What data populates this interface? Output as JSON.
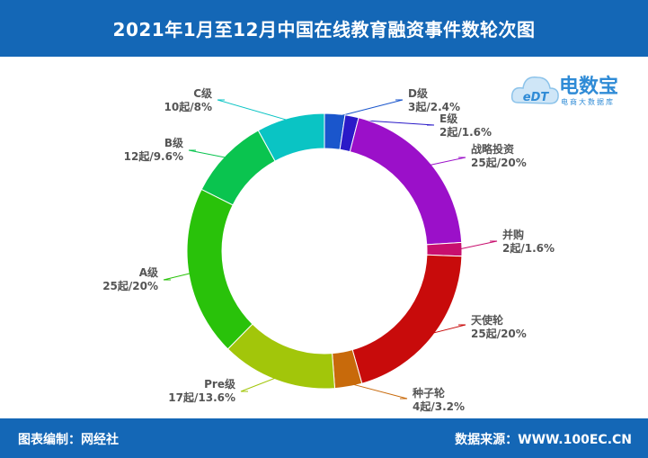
{
  "header": {
    "title": "2021年1月至12月中国在线教育融资事件数轮次图"
  },
  "footer": {
    "left": "图表编制：网经社",
    "right": "数据来源：WWW.100EC.CN"
  },
  "logo": {
    "mark": "eDT",
    "brand": "电数宝",
    "sub": "电商大数据库"
  },
  "chart_data": {
    "type": "pie",
    "title": "2021年1月至12月中国在线教育融资事件数轮次图",
    "unit": "起",
    "slices": [
      {
        "name": "D级",
        "value": 3,
        "percent": "2.4%",
        "label": "3起/2.4%",
        "color": "#1a56cc"
      },
      {
        "name": "E级",
        "value": 2,
        "percent": "1.6%",
        "label": "2起/1.6%",
        "color": "#2a1ac8"
      },
      {
        "name": "战略投资",
        "value": 25,
        "percent": "20%",
        "label": "25起/20%",
        "color": "#9b10c9"
      },
      {
        "name": "并购",
        "value": 2,
        "percent": "1.6%",
        "label": "2起/1.6%",
        "color": "#c80f6e"
      },
      {
        "name": "天使轮",
        "value": 25,
        "percent": "20%",
        "label": "25起/20%",
        "color": "#c80b0b"
      },
      {
        "name": "种子轮",
        "value": 4,
        "percent": "3.2%",
        "label": "4起/3.2%",
        "color": "#c86a0b"
      },
      {
        "name": "Pre级",
        "value": 17,
        "percent": "13.6%",
        "label": "17起/13.6%",
        "color": "#a2c60a"
      },
      {
        "name": "A级",
        "value": 25,
        "percent": "20%",
        "label": "25起/20%",
        "color": "#29c20a"
      },
      {
        "name": "B级",
        "value": 12,
        "percent": "9.6%",
        "label": "12起/9.6%",
        "color": "#0ac44f"
      },
      {
        "name": "C级",
        "value": 10,
        "percent": "8%",
        "label": "10起/8%",
        "color": "#0ac4c4"
      }
    ]
  }
}
